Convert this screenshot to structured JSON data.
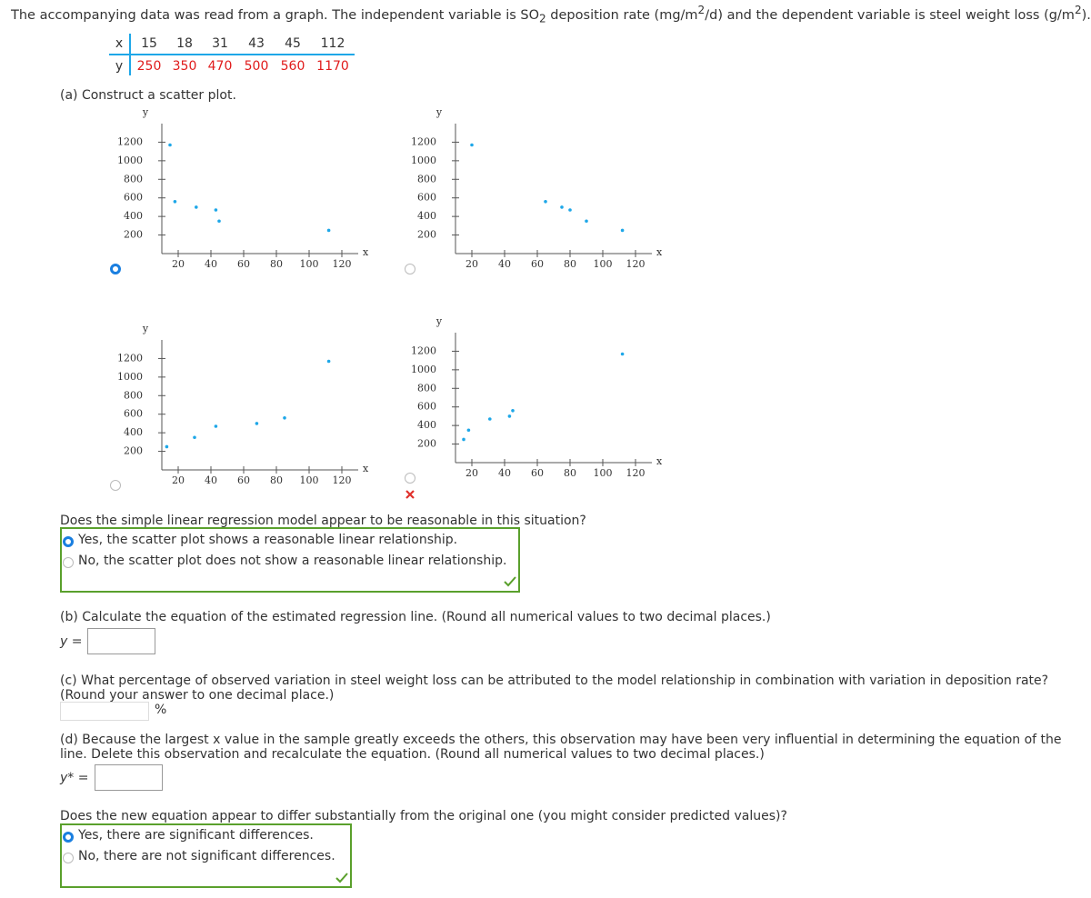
{
  "intro": [
    "The accompanying data was read from a graph. The independent variable is SO",
    "2",
    " deposition rate (mg/m",
    "2",
    "/d) and the dependent variable is steel weight loss (g/m",
    "2",
    ")."
  ],
  "table": {
    "rows": [
      {
        "label": "x",
        "values": [
          15,
          18,
          31,
          43,
          45,
          112
        ]
      },
      {
        "label": "y",
        "values": [
          250,
          350,
          470,
          500,
          560,
          1170
        ]
      }
    ]
  },
  "part_a": {
    "prompt": "(a) Construct a scatter plot.",
    "plots": [
      {
        "type": "scatter",
        "x": [
          15,
          18,
          31,
          43,
          45,
          112
        ],
        "y": [
          1170,
          560,
          500,
          470,
          350,
          250
        ],
        "xlim": [
          10,
          130
        ],
        "ylim": [
          0,
          1400
        ],
        "xticks": [
          20,
          40,
          60,
          80,
          100,
          120
        ],
        "yticks": [
          200,
          400,
          600,
          800,
          1000,
          1200
        ],
        "x_label": "x",
        "y_label": "y",
        "color": "#1ea7e8"
      },
      {
        "type": "scatter",
        "x": [
          20,
          65,
          75,
          80,
          90,
          112
        ],
        "y": [
          1170,
          560,
          500,
          470,
          350,
          250
        ],
        "xlim": [
          10,
          130
        ],
        "ylim": [
          0,
          1400
        ],
        "xticks": [
          20,
          40,
          60,
          80,
          100,
          120
        ],
        "yticks": [
          200,
          400,
          600,
          800,
          1000,
          1200
        ],
        "x_label": "x",
        "y_label": "y",
        "color": "#1ea7e8"
      },
      {
        "type": "scatter",
        "x": [
          13,
          30,
          43,
          68,
          85,
          112
        ],
        "y": [
          250,
          350,
          470,
          500,
          560,
          1170
        ],
        "xlim": [
          10,
          130
        ],
        "ylim": [
          0,
          1400
        ],
        "xticks": [
          20,
          40,
          60,
          80,
          100,
          120
        ],
        "yticks": [
          200,
          400,
          600,
          800,
          1000,
          1200
        ],
        "x_label": "x",
        "y_label": "y",
        "color": "#1ea7e8"
      },
      {
        "type": "scatter",
        "x": [
          15,
          18,
          31,
          43,
          45,
          112
        ],
        "y": [
          250,
          350,
          470,
          500,
          560,
          1170
        ],
        "xlim": [
          10,
          130
        ],
        "ylim": [
          0,
          1400
        ],
        "xticks": [
          20,
          40,
          60,
          80,
          100,
          120
        ],
        "yticks": [
          200,
          400,
          600,
          800,
          1000,
          1200
        ],
        "x_label": "x",
        "y_label": "y",
        "color": "#1ea7e8"
      }
    ]
  },
  "question_1": {
    "prompt": "Does the simple linear regression model appear to be reasonable in this situation?",
    "options": [
      "Yes, the scatter plot shows a reasonable linear relationship.",
      "No, the scatter plot does not show a reasonable linear relationship."
    ]
  },
  "part_b": {
    "prompt": "(b) Calculate the equation of the estimated regression line. (Round all numerical values to two decimal places.)",
    "lhs": "y ="
  },
  "part_c": {
    "prompt": "(c) What percentage of observed variation in steel weight loss can be attributed to the model relationship in combination with variation in deposition rate? (Round your answer to one decimal place.)",
    "unit": "%"
  },
  "part_d": {
    "prompt": "(d) Because the largest x value in the sample greatly exceeds the others, this observation may have been very influential in determining the equation of the line. Delete this observation and recalculate the equation. (Round all numerical values to two decimal places.)",
    "lhs": "y* ="
  },
  "question_2": {
    "prompt": "Does the new equation appear to differ substantially from the original one (you might consider predicted values)?",
    "options": [
      "Yes, there are significant differences.",
      "No, there are not significant differences."
    ]
  }
}
